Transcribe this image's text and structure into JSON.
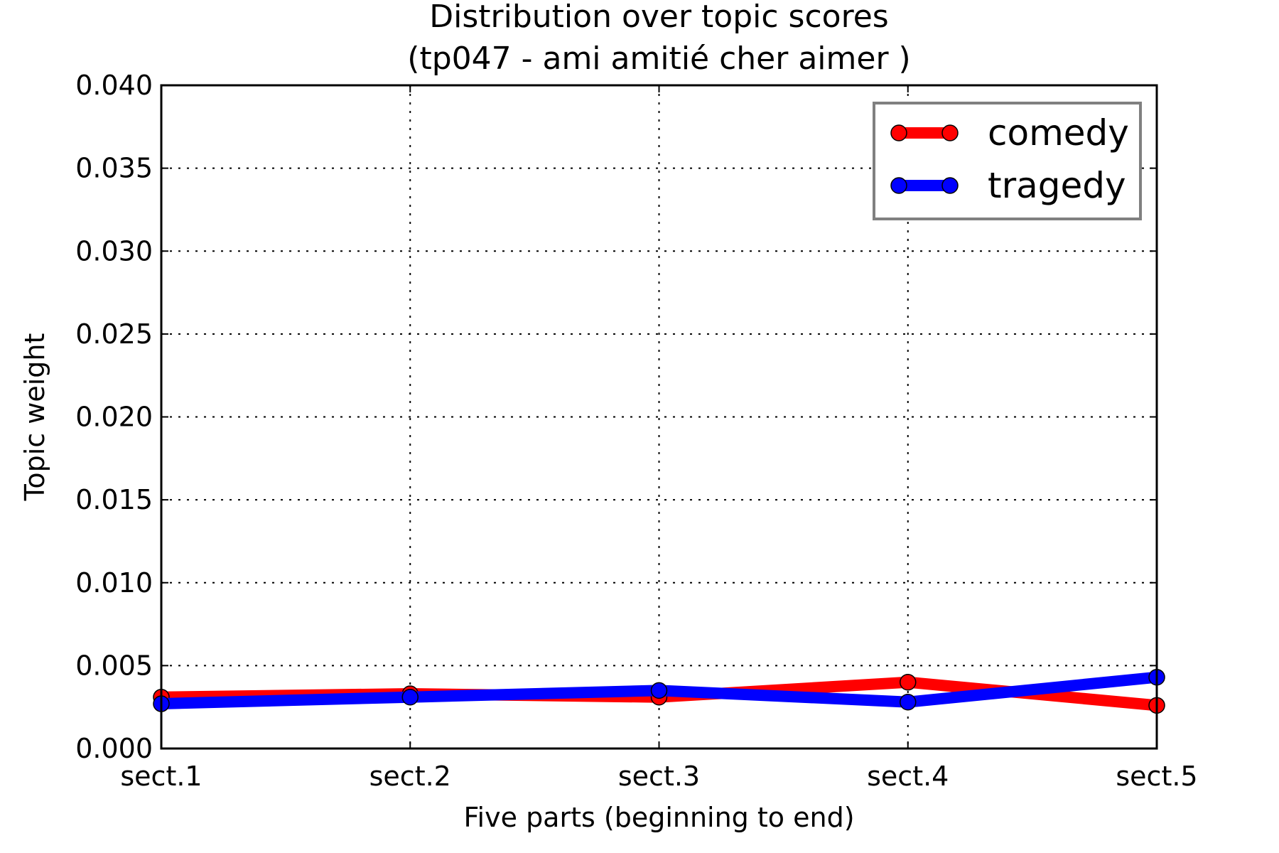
{
  "chart_data": {
    "type": "line",
    "title_lines": [
      "Distribution over topic scores",
      "(tp047 - ami amitié cher aimer )"
    ],
    "xlabel": "Five parts (beginning to end)",
    "ylabel": "Topic weight",
    "categories": [
      "sect.1",
      "sect.2",
      "sect.3",
      "sect.4",
      "sect.5"
    ],
    "ylim": [
      0,
      0.04
    ],
    "yticks": [
      "0.000",
      "0.005",
      "0.010",
      "0.015",
      "0.020",
      "0.025",
      "0.030",
      "0.035",
      "0.040"
    ],
    "ytick_values": [
      0,
      0.005,
      0.01,
      0.015,
      0.02,
      0.025,
      0.03,
      0.035,
      0.04
    ],
    "grid": true,
    "legend_position": "top-right",
    "series": [
      {
        "name": "comedy",
        "color": "#ff0000",
        "values": [
          0.0031,
          0.0033,
          0.0031,
          0.004,
          0.0026
        ]
      },
      {
        "name": "tragedy",
        "color": "#0000ff",
        "values": [
          0.0027,
          0.0031,
          0.0035,
          0.0028,
          0.0043
        ]
      }
    ]
  }
}
